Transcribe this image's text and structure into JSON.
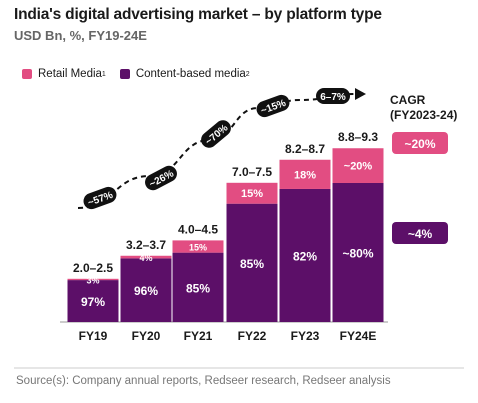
{
  "chart_data": {
    "type": "bar",
    "stacked": true,
    "title": "India's digital advertising market – by platform type",
    "subtitle": "USD Bn, %, FY19-24E",
    "categories": [
      "FY19",
      "FY20",
      "FY21",
      "FY22",
      "FY23",
      "FY24E"
    ],
    "totals": [
      "2.0–2.5",
      "3.2–3.7",
      "4.0–4.5",
      "7.0–7.5",
      "8.2–8.7",
      "8.8–9.3"
    ],
    "total_midpoints": [
      2.25,
      3.45,
      4.25,
      7.25,
      8.45,
      9.05
    ],
    "series": [
      {
        "name": "Content-based media",
        "color": "#5c0f68",
        "share_pct": [
          97,
          96,
          85,
          85,
          82,
          80
        ],
        "labels": [
          "97%",
          "96%",
          "85%",
          "85%",
          "82%",
          "~80%"
        ]
      },
      {
        "name": "Retail Media",
        "color": "#e24d82",
        "share_pct": [
          3,
          4,
          15,
          15,
          18,
          20
        ],
        "labels": [
          "3%",
          "4%",
          "15%",
          "15%",
          "18%",
          "~20%"
        ]
      }
    ],
    "growth_labels": [
      "~57%",
      "~26%",
      "~70%",
      "~15%",
      "6–7%"
    ],
    "legend_position": "top-left",
    "grid": false
  },
  "legend": {
    "retail_label": "Retail Media",
    "retail_sup": "1",
    "content_label": "Content-based media",
    "content_sup": "2"
  },
  "cagr": {
    "title_line1": "CAGR",
    "title_line2": "(FY2023-24)",
    "retail_value": "~20%",
    "content_value": "~4%"
  },
  "source": "Source(s): Company annual reports, Redseer research, Redseer analysis",
  "colors": {
    "retail": "#e24d82",
    "content": "#5c0f68",
    "arrow": "#111111"
  }
}
